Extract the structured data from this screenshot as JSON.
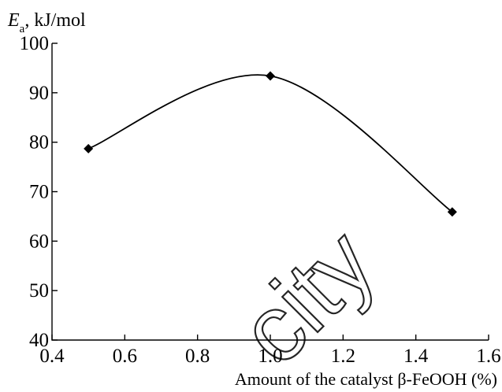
{
  "chart_data": {
    "type": "line",
    "ylabel_main": "E",
    "ylabel_sub": "a",
    "ylabel_units": ", kJ/mol",
    "xlabel": "Amount of the catalyst β-FeOOH (%)",
    "xlim": [
      0.4,
      1.6
    ],
    "ylim": [
      40,
      100
    ],
    "x_ticks": [
      "0.4",
      "0.6",
      "0.8",
      "1.0",
      "1.2",
      "1.4",
      "1.6"
    ],
    "y_ticks": [
      "40",
      "50",
      "60",
      "70",
      "80",
      "90",
      "100"
    ],
    "grid": false,
    "series": [
      {
        "x": [
          0.5,
          1.0,
          1.5
        ],
        "y": [
          78.7,
          93.4,
          65.9
        ],
        "marker": "diamond",
        "curve": "smooth"
      }
    ]
  },
  "watermark": {
    "text": "city"
  }
}
